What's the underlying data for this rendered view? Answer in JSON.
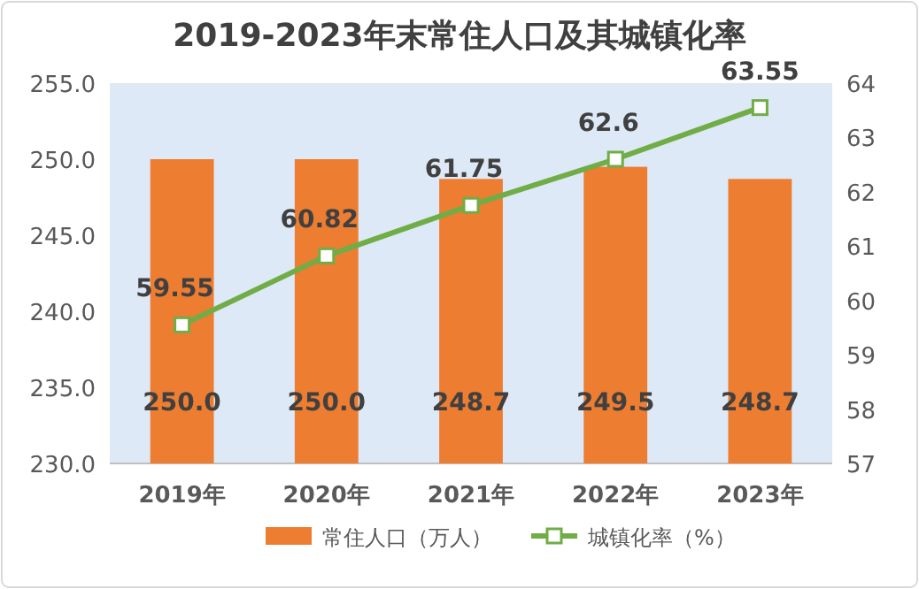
{
  "chart_data": {
    "type": "bar",
    "title": "2019-2023年末常住人口及其城镇化率",
    "categories": [
      "2019年",
      "2020年",
      "2021年",
      "2022年",
      "2023年"
    ],
    "series": [
      {
        "name": "常住人口（万人）",
        "color": "#ed7d31",
        "values": [
          250.0,
          250.0,
          248.7,
          249.5,
          248.7
        ],
        "value_labels": [
          "250.0",
          "250.0",
          "248.7",
          "249.5",
          "248.7"
        ]
      },
      {
        "name": "城镇化率（%）",
        "type": "line",
        "axis": "y2",
        "color": "#70ad47",
        "marker": "square",
        "values": [
          59.55,
          60.82,
          61.75,
          62.6,
          63.55
        ],
        "value_labels": [
          "59.55",
          "60.82",
          "61.75",
          "62.6",
          "63.55"
        ]
      }
    ],
    "ylim": [
      230,
      255
    ],
    "yticks": [
      {
        "value": 230,
        "label": "230.0"
      },
      {
        "value": 235,
        "label": "235.0"
      },
      {
        "value": 240,
        "label": "240.0"
      },
      {
        "value": 245,
        "label": "245.0"
      },
      {
        "value": 250,
        "label": "250.0"
      },
      {
        "value": 255,
        "label": "255.0"
      }
    ],
    "y2lim": [
      57,
      64
    ],
    "y2ticks": [
      57,
      58,
      59,
      60,
      61,
      62,
      63,
      64
    ],
    "legend": "bottom"
  }
}
